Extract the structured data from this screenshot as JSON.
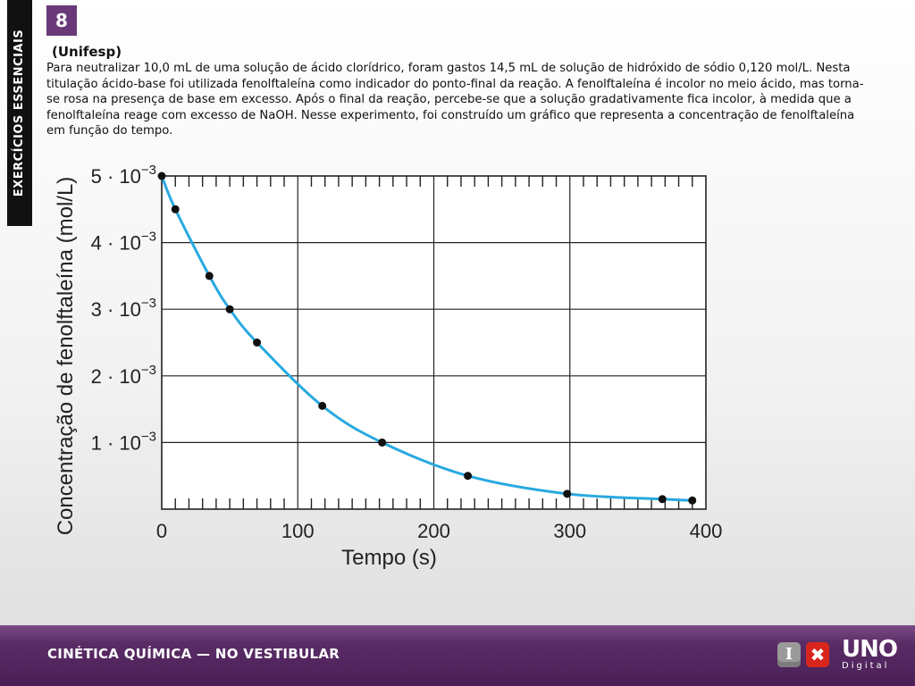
{
  "sidebar": {
    "label": "EXERCÍCIOS ESSENCIAIS"
  },
  "question": {
    "number": "8",
    "source": "(Unifesp)",
    "statement": "Para neutralizar 10,0 mL de uma solução de ácido clorídrico, foram gastos 14,5 mL de solução de hidróxido de sódio 0,120 mol/L. Nesta titulação ácido-base foi utilizada fenolftaleína como indicador do ponto-final da reação. A fenolftaleína é incolor no meio ácido, mas torna-se rosa na presença de base em excesso. Após o final da reação, percebe-se que a solução gradativamente fica incolor, à medida que a fenolftaleína reage com excesso de NaOH. Nesse experimento, foi construído um gráfico que representa a concentração de fenolftaleína em função do tempo."
  },
  "chart_data": {
    "type": "scatter",
    "title": "",
    "xlabel": "Tempo (s)",
    "ylabel": "Concentração de fenolftaleína (mol/L)",
    "xlim": [
      0,
      400
    ],
    "ylim": [
      0,
      0.005
    ],
    "x_ticks": [
      0,
      100,
      200,
      300,
      400
    ],
    "x_tick_labels": [
      "0",
      "100",
      "200",
      "300",
      "400"
    ],
    "y_ticks": [
      0.001,
      0.002,
      0.003,
      0.004,
      0.005
    ],
    "y_tick_labels": [
      {
        "mantissa": "1",
        "exp": "−3"
      },
      {
        "mantissa": "2",
        "exp": "−3"
      },
      {
        "mantissa": "3",
        "exp": "−3"
      },
      {
        "mantissa": "4",
        "exp": "−3"
      },
      {
        "mantissa": "5",
        "exp": "−3"
      }
    ],
    "grid": true,
    "point_color": "#111111",
    "curve_color": "#29a9e0",
    "series": [
      {
        "points": [
          {
            "x": 0,
            "y": 0.005
          },
          {
            "x": 10,
            "y": 0.0045
          },
          {
            "x": 35,
            "y": 0.0035
          },
          {
            "x": 50,
            "y": 0.003
          },
          {
            "x": 70,
            "y": 0.0025
          },
          {
            "x": 118,
            "y": 0.00155
          },
          {
            "x": 162,
            "y": 0.001
          },
          {
            "x": 225,
            "y": 0.0005
          },
          {
            "x": 298,
            "y": 0.00023
          },
          {
            "x": 368,
            "y": 0.00015
          },
          {
            "x": 390,
            "y": 0.00013
          }
        ]
      }
    ]
  },
  "footer": {
    "title_main": "CINÉTICA QUÍMICA",
    "title_sep": "—",
    "title_sub": "NO VESTIBULAR",
    "logo_i": "I",
    "logo_x": "✖",
    "brand": "UNO",
    "brand_sub": "Digital"
  }
}
